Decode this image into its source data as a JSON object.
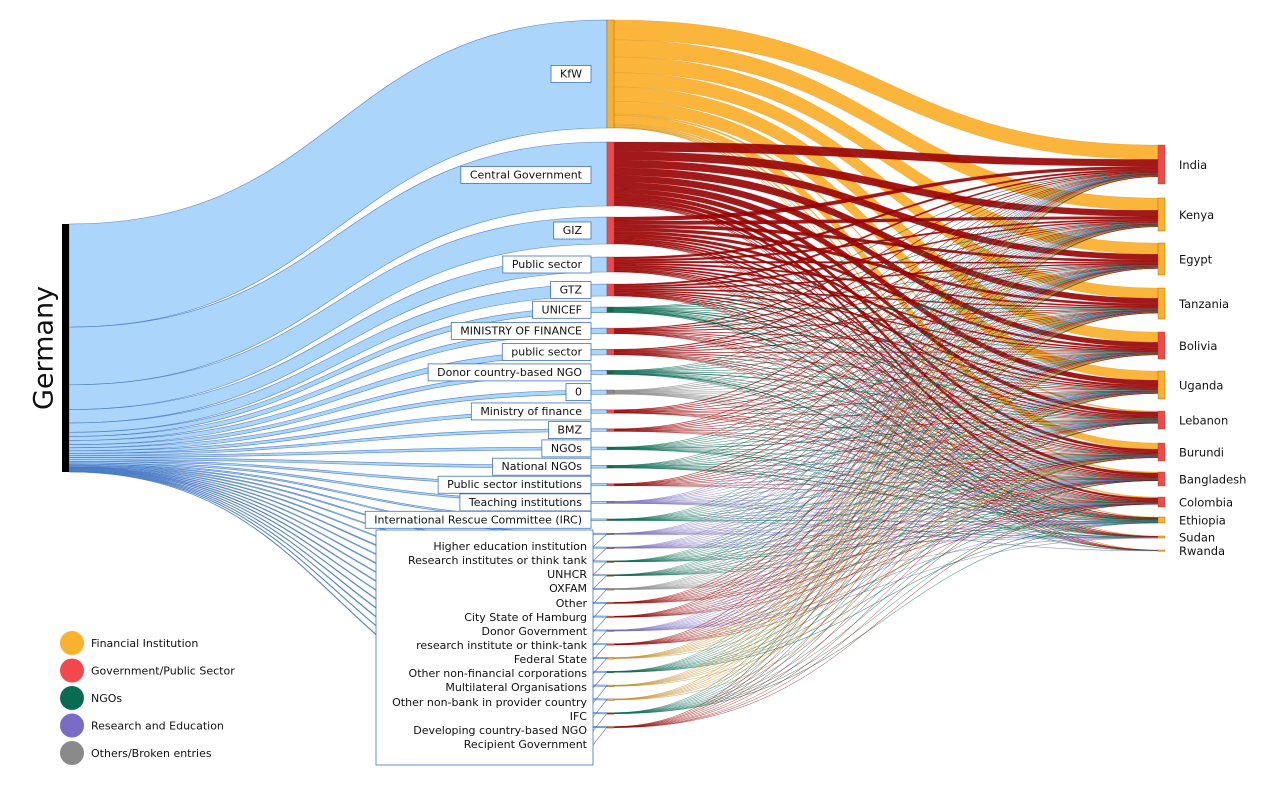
{
  "source": {
    "label": "Germany"
  },
  "legend": [
    {
      "label": "Financial Institution",
      "color": "#FBB130"
    },
    {
      "label": "Government/Public Sector",
      "color": "#F2474D"
    },
    {
      "label": "NGOs",
      "color": "#0A6B53"
    },
    {
      "label": "Research and Education",
      "color": "#7A6CC4"
    },
    {
      "label": "Others/Broken entries",
      "color": "#8A8A8A"
    }
  ],
  "link_colors": {
    "source_link": "#AAD4FC",
    "source_link_stroke": "#3F72C0",
    "Financial Institution": "#FBB130",
    "Government/Public Sector": "#980000",
    "NGOs": "#0A6B53",
    "Research and Education": "#7A6CC4",
    "Others/Broken entries": "#8A8A8A"
  },
  "channels": [
    {
      "label": "KfW",
      "category": "Financial Institution",
      "value": 100
    },
    {
      "label": "Central Government",
      "category": "Government/Public Sector",
      "value": 56
    },
    {
      "label": "GIZ",
      "category": "Government/Public Sector",
      "value": 24
    },
    {
      "label": "Public sector",
      "category": "Government/Public Sector",
      "value": 13
    },
    {
      "label": "GTZ",
      "category": "Government/Public Sector",
      "value": 9
    },
    {
      "label": "UNICEF",
      "category": "NGOs",
      "value": 4
    },
    {
      "label": "MINISTRY OF FINANCE",
      "category": "Government/Public Sector",
      "value": 4
    },
    {
      "label": "public sector",
      "category": "Government/Public Sector",
      "value": 4
    },
    {
      "label": "Donor country-based NGO",
      "category": "NGOs",
      "value": 3
    },
    {
      "label": "0",
      "category": "Others/Broken entries",
      "value": 3
    },
    {
      "label": "Ministry of finance",
      "category": "Government/Public Sector",
      "value": 2.5
    },
    {
      "label": "BMZ",
      "category": "Government/Public Sector",
      "value": 2
    },
    {
      "label": "NGOs",
      "category": "NGOs",
      "value": 2
    },
    {
      "label": "National NGOs",
      "category": "NGOs",
      "value": 2
    },
    {
      "label": "Public sector institutions",
      "category": "Government/Public Sector",
      "value": 1.6
    },
    {
      "label": "Teaching institutions",
      "category": "Research and Education",
      "value": 1.5
    },
    {
      "label": "International Rescue Committee (IRC)",
      "category": "NGOs",
      "value": 1.2
    },
    {
      "label": "Higher education institution",
      "category": "Research and Education",
      "value": 0.9
    },
    {
      "label": "Research institutes or think tank",
      "category": "Research and Education",
      "value": 0.8
    },
    {
      "label": "UNHCR",
      "category": "NGOs",
      "value": 0.8
    },
    {
      "label": "OXFAM",
      "category": "NGOs",
      "value": 0.7
    },
    {
      "label": "Other",
      "category": "Others/Broken entries",
      "value": 0.6
    },
    {
      "label": "City State of Hamburg",
      "category": "Government/Public Sector",
      "value": 0.6
    },
    {
      "label": "Donor Government",
      "category": "Government/Public Sector",
      "value": 0.5
    },
    {
      "label": "research institute or think-tank",
      "category": "Research and Education",
      "value": 0.5
    },
    {
      "label": "Federal State",
      "category": "Government/Public Sector",
      "value": 0.5
    },
    {
      "label": "Other non-financial corporations",
      "category": "Financial Institution",
      "value": 0.4
    },
    {
      "label": "Multilateral Organisations",
      "category": "NGOs",
      "value": 0.3
    },
    {
      "label": "Other non-bank in provider country",
      "category": "Financial Institution",
      "value": 0.3
    },
    {
      "label": "IFC",
      "category": "Financial Institution",
      "value": 0.3
    },
    {
      "label": "Developing country-based NGO",
      "category": "NGOs",
      "value": 0.3
    },
    {
      "label": "Recipient Government",
      "category": "Government/Public Sector",
      "value": 0.2
    }
  ],
  "recipients": [
    {
      "label": "India",
      "value": 50
    },
    {
      "label": "Kenya",
      "value": 43
    },
    {
      "label": "Egypt",
      "value": 39
    },
    {
      "label": "Tanzania",
      "value": 37
    },
    {
      "label": "Bolivia",
      "value": 34
    },
    {
      "label": "Uganda",
      "value": 34
    },
    {
      "label": "Lebanon",
      "value": 23
    },
    {
      "label": "Burundi",
      "value": 21
    },
    {
      "label": "Bangladesh",
      "value": 14
    },
    {
      "label": "Colombia",
      "value": 11
    },
    {
      "label": "Ethiopia",
      "value": 6
    },
    {
      "label": "Sudan",
      "value": 2
    },
    {
      "label": "Rwanda",
      "value": 1
    }
  ]
}
